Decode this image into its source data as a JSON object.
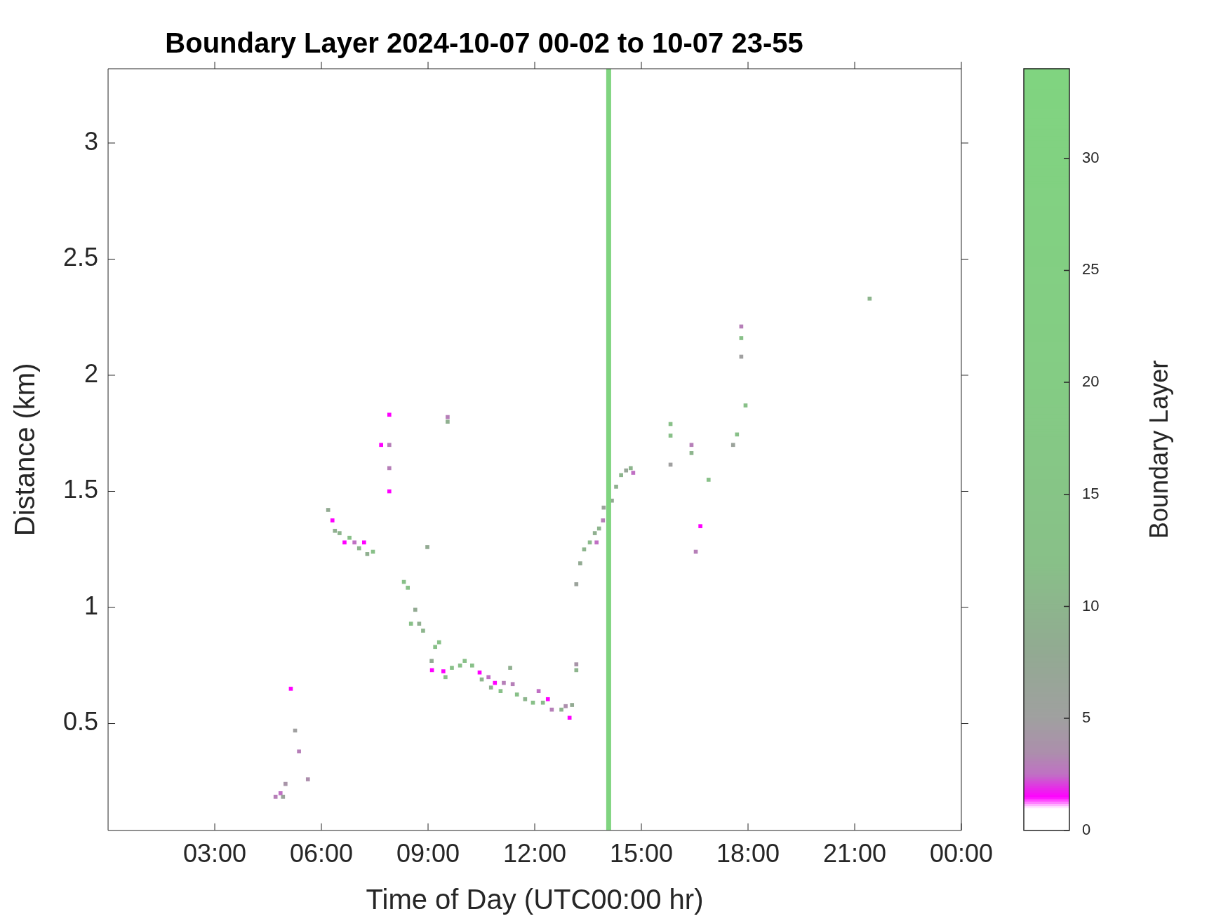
{
  "chart_data": {
    "type": "scatter",
    "title": "Boundary Layer 2024-10-07 00-02 to 10-07 23-55",
    "xlabel": "Time of Day (UTC00:00 hr)",
    "ylabel": "Distance (km)",
    "clabel": "Boundary Layer",
    "xlim": [
      0,
      24
    ],
    "xticks": [
      {
        "value": 3,
        "label": "03:00"
      },
      {
        "value": 6,
        "label": "06:00"
      },
      {
        "value": 9,
        "label": "09:00"
      },
      {
        "value": 12,
        "label": "12:00"
      },
      {
        "value": 15,
        "label": "15:00"
      },
      {
        "value": 18,
        "label": "18:00"
      },
      {
        "value": 21,
        "label": "21:00"
      },
      {
        "value": 24,
        "label": "00:00"
      }
    ],
    "ylim": [
      0.04,
      3.32
    ],
    "yticks": [
      0.5,
      1,
      1.5,
      2,
      2.5,
      3
    ],
    "clim": [
      0,
      34
    ],
    "cticks": [
      0,
      5,
      10,
      15,
      20,
      25,
      30
    ],
    "grid": false,
    "legend": false,
    "marker": "square",
    "ref_lines": [
      {
        "axis": "x",
        "value": 14.08,
        "color": "#80d480"
      }
    ],
    "series": [
      {
        "x": [
          4.71,
          4.85,
          4.92,
          4.99,
          5.14,
          5.26,
          5.37,
          5.62,
          6.19,
          6.31,
          6.38,
          6.51,
          6.65,
          6.79,
          6.93,
          7.06,
          7.2,
          7.29,
          7.45,
          7.68,
          7.91,
          7.91,
          7.91,
          7.91,
          8.98,
          9.55,
          9.55,
          8.32,
          8.43,
          8.64,
          8.52,
          8.75,
          8.86,
          9.1,
          9.11,
          9.2,
          9.31,
          9.43,
          9.49,
          9.67,
          9.9,
          10.03,
          10.24,
          10.45,
          10.51,
          10.7,
          10.77,
          10.88,
          11.04,
          11.13,
          11.31,
          11.38,
          11.5,
          11.73,
          11.95,
          12.11,
          12.23,
          12.37,
          12.48,
          12.75,
          12.87,
          12.98,
          13.05,
          13.17,
          13.17,
          13.17,
          13.28,
          13.39,
          13.55,
          13.69,
          13.74,
          13.81,
          13.92,
          13.94,
          14.17,
          14.29,
          14.43,
          14.57,
          14.7,
          14.77,
          15.82,
          15.82,
          15.82,
          16.41,
          16.41,
          16.53,
          16.66,
          16.89,
          17.58,
          17.69,
          17.81,
          17.81,
          17.81,
          17.93,
          21.42
        ],
        "values": [
          0.185,
          0.2,
          0.185,
          0.24,
          0.65,
          0.47,
          0.38,
          0.26,
          1.42,
          1.375,
          1.33,
          1.32,
          1.28,
          1.3,
          1.28,
          1.255,
          1.28,
          1.23,
          1.24,
          1.7,
          1.83,
          1.7,
          1.6,
          1.5,
          1.26,
          1.82,
          1.8,
          1.11,
          1.085,
          0.99,
          0.93,
          0.93,
          0.9,
          0.77,
          0.73,
          0.83,
          0.85,
          0.725,
          0.7,
          0.74,
          0.75,
          0.77,
          0.75,
          0.72,
          0.69,
          0.7,
          0.655,
          0.675,
          0.64,
          0.675,
          0.74,
          0.67,
          0.625,
          0.605,
          0.59,
          0.64,
          0.59,
          0.605,
          0.56,
          0.56,
          0.575,
          0.525,
          0.58,
          0.755,
          0.73,
          1.1,
          1.19,
          1.25,
          1.28,
          1.32,
          1.28,
          1.34,
          1.375,
          1.43,
          1.46,
          1.52,
          1.57,
          1.59,
          1.6,
          1.58,
          1.79,
          1.74,
          1.615,
          1.7,
          1.665,
          1.24,
          1.35,
          1.55,
          1.7,
          1.745,
          2.21,
          2.16,
          2.08,
          1.87,
          2.33
        ],
        "cvalues": [
          3,
          2.5,
          6,
          4,
          1.5,
          5,
          3,
          3.5,
          8,
          1.5,
          9,
          10,
          1.5,
          12,
          2.5,
          10,
          1.5,
          9,
          12,
          1.5,
          1.5,
          3,
          3,
          1.5,
          8,
          3,
          9,
          12,
          12,
          8,
          12,
          9,
          10,
          8,
          1.5,
          12,
          12,
          1.5,
          12,
          12,
          12,
          12,
          12,
          1.5,
          10,
          2.5,
          9,
          1.5,
          12,
          3,
          9,
          3,
          12,
          10,
          12,
          2.5,
          11,
          1.5,
          3,
          10,
          3.5,
          1.5,
          8,
          4,
          10,
          6,
          8,
          10,
          11,
          9,
          2.5,
          10,
          3,
          6,
          8,
          9,
          10,
          7,
          10,
          2.5,
          12,
          12,
          5,
          3,
          10,
          3,
          1.5,
          12,
          6,
          12,
          3,
          12,
          5,
          12,
          10
        ]
      }
    ]
  }
}
